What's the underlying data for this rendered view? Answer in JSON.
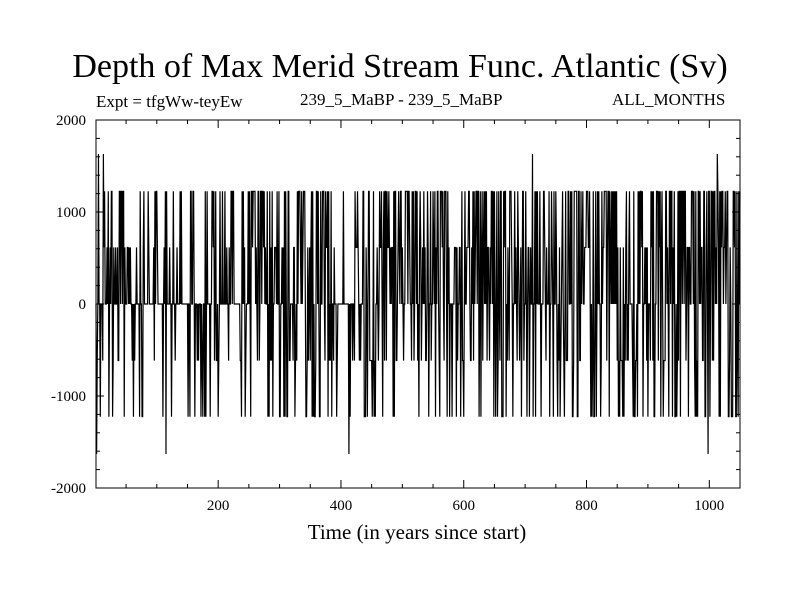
{
  "chart_data": {
    "type": "line",
    "title": "Depth of Max Merid Stream Func. Atlantic (Sv)",
    "subtitle_left": "Expt = tfgWw-teyEw",
    "subtitle_center": "239_5_MaBP - 239_5_MaBP",
    "subtitle_right": "ALL_MONTHS",
    "xlabel": "Time (in years since start)",
    "ylabel": "",
    "xlim": [
      1,
      1050
    ],
    "ylim": [
      -2000,
      2000
    ],
    "x_ticks": [
      200,
      400,
      600,
      800,
      1000
    ],
    "y_ticks": [
      -2000,
      -1000,
      0,
      1000,
      2000
    ],
    "x_tick_labels": [
      "200",
      "400",
      "600",
      "800",
      "1000"
    ],
    "y_tick_labels": [
      "-2000",
      "-1000",
      "0",
      "1000",
      "2000"
    ],
    "levels": [
      -1630,
      -1225,
      -615,
      0,
      615,
      1225,
      1630
    ],
    "density": [
      {
        "x": [
          1,
          20
        ],
        "v": 0.55
      },
      {
        "x": [
          20,
          60
        ],
        "v": 0.6
      },
      {
        "x": [
          60,
          100
        ],
        "v": 0.45
      },
      {
        "x": [
          100,
          150
        ],
        "v": 0.3
      },
      {
        "x": [
          150,
          250
        ],
        "v": 0.55
      },
      {
        "x": [
          250,
          300
        ],
        "v": 0.7
      },
      {
        "x": [
          300,
          350
        ],
        "v": 0.6
      },
      {
        "x": [
          350,
          390
        ],
        "v": 0.8
      },
      {
        "x": [
          390,
          420
        ],
        "v": 0.25
      },
      {
        "x": [
          420,
          500
        ],
        "v": 0.75
      },
      {
        "x": [
          500,
          700
        ],
        "v": 0.7
      },
      {
        "x": [
          700,
          750
        ],
        "v": 0.45
      },
      {
        "x": [
          750,
          860
        ],
        "v": 0.8
      },
      {
        "x": [
          860,
          950
        ],
        "v": 0.75
      },
      {
        "x": [
          950,
          1050
        ],
        "v": 0.85
      }
    ],
    "extremes": [
      {
        "x": 2,
        "y": -1630
      },
      {
        "x": 5,
        "y": 1630
      },
      {
        "x": 13,
        "y": 1630
      },
      {
        "x": 115,
        "y": -1630
      },
      {
        "x": 413,
        "y": -1630
      },
      {
        "x": 712,
        "y": 1630
      },
      {
        "x": 998,
        "y": -1630
      },
      {
        "x": 1013,
        "y": 1630
      }
    ]
  }
}
